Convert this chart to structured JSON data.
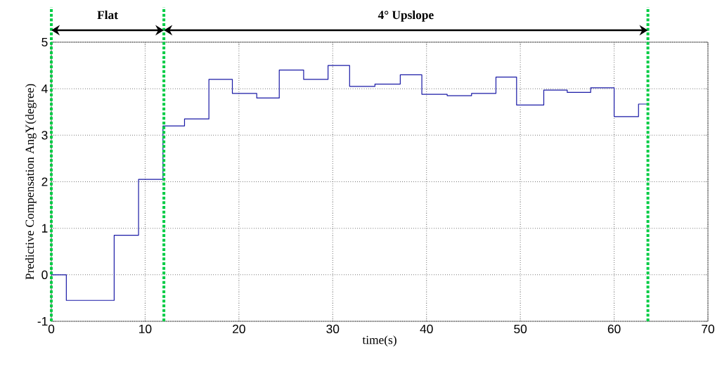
{
  "chart_data": {
    "type": "step",
    "xlabel": "time(s)",
    "ylabel": "Predictive Compensation AngY(degree)",
    "x": [
      0,
      1.6,
      6.7,
      9.3,
      11.9,
      14.2,
      16.8,
      19.3,
      21.9,
      24.3,
      26.9,
      29.5,
      31.8,
      34.5,
      37.2,
      39.5,
      42.2,
      44.8,
      47.4,
      49.6,
      52.5,
      55.0,
      57.5,
      60.0,
      62.6,
      63.6
    ],
    "series": [
      {
        "color": "#1a1aa6",
        "values": [
          0,
          -0.55,
          0.85,
          2.05,
          3.2,
          3.35,
          4.2,
          3.9,
          3.8,
          4.4,
          4.2,
          4.5,
          4.05,
          4.1,
          4.3,
          3.88,
          3.85,
          3.9,
          4.25,
          3.65,
          3.97,
          3.92,
          4.02,
          3.4,
          3.67,
          3.67
        ]
      }
    ],
    "xlim": [
      0,
      70
    ],
    "ylim": [
      -1,
      5
    ],
    "xticks": [
      0,
      10,
      20,
      30,
      40,
      50,
      60,
      70
    ],
    "yticks": [
      -1,
      0,
      1,
      2,
      3,
      4,
      5
    ],
    "grid": true,
    "line_style": "solid",
    "marker": "none",
    "ref_lines": [
      {
        "axis": "x",
        "value": 0,
        "color": "#00cc44",
        "line_style": "dotted"
      },
      {
        "axis": "x",
        "value": 12,
        "color": "#00cc44",
        "line_style": "dotted"
      },
      {
        "axis": "x",
        "value": 63.6,
        "color": "#00cc44",
        "line_style": "dotted"
      }
    ],
    "annotations": [
      "Flat",
      "4° Upslope"
    ]
  }
}
